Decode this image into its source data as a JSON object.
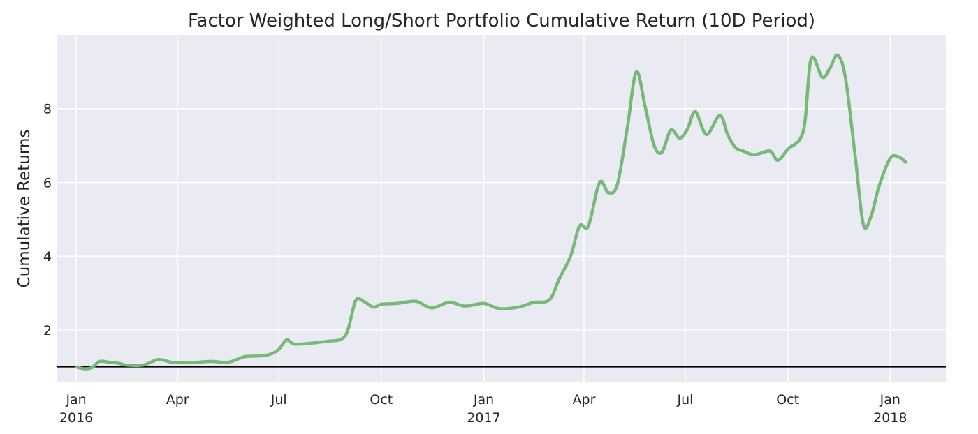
{
  "chart_data": {
    "type": "line",
    "title": "Factor Weighted Long/Short Portfolio Cumulative Return (10D Period)",
    "xlabel": "",
    "ylabel": "Cumulative Returns",
    "x_range": [
      "2015-12-15",
      "2018-02-20"
    ],
    "ylim": [
      0.6,
      10.0
    ],
    "y_ticks": [
      2,
      4,
      6,
      8
    ],
    "grid": true,
    "legend": "none",
    "background_color": "#eaeaf2",
    "line_color": "#78b878",
    "baseline": {
      "y": 1.0,
      "color": "#000000"
    },
    "x_ticks": [
      {
        "date": "2016-01-01",
        "label": "Jan",
        "year": "2016"
      },
      {
        "date": "2016-04-01",
        "label": "Apr",
        "year": ""
      },
      {
        "date": "2016-07-01",
        "label": "Jul",
        "year": ""
      },
      {
        "date": "2016-10-01",
        "label": "Oct",
        "year": ""
      },
      {
        "date": "2017-01-01",
        "label": "Jan",
        "year": "2017"
      },
      {
        "date": "2017-04-01",
        "label": "Apr",
        "year": ""
      },
      {
        "date": "2017-07-01",
        "label": "Jul",
        "year": ""
      },
      {
        "date": "2017-10-01",
        "label": "Oct",
        "year": ""
      },
      {
        "date": "2018-01-01",
        "label": "Jan",
        "year": "2018"
      }
    ],
    "series": [
      {
        "x": [
          "2016-01-01",
          "2016-01-08",
          "2016-01-15",
          "2016-01-22",
          "2016-02-01",
          "2016-02-08",
          "2016-02-15",
          "2016-03-01",
          "2016-03-15",
          "2016-03-28",
          "2016-04-15",
          "2016-05-01",
          "2016-05-15",
          "2016-05-24",
          "2016-06-01",
          "2016-06-15",
          "2016-06-24",
          "2016-07-01",
          "2016-07-08",
          "2016-07-15",
          "2016-08-01",
          "2016-08-15",
          "2016-08-26",
          "2016-09-01",
          "2016-09-08",
          "2016-09-15",
          "2016-09-24",
          "2016-10-01",
          "2016-10-15",
          "2016-11-01",
          "2016-11-15",
          "2016-12-01",
          "2016-12-15",
          "2017-01-01",
          "2017-01-15",
          "2017-02-01",
          "2017-02-15",
          "2017-03-01",
          "2017-03-10",
          "2017-03-20",
          "2017-03-28",
          "2017-04-05",
          "2017-04-15",
          "2017-04-23",
          "2017-05-01",
          "2017-05-10",
          "2017-05-18",
          "2017-05-26",
          "2017-06-03",
          "2017-06-10",
          "2017-06-18",
          "2017-06-26",
          "2017-07-03",
          "2017-07-10",
          "2017-07-20",
          "2017-08-01",
          "2017-08-08",
          "2017-08-15",
          "2017-08-22",
          "2017-09-01",
          "2017-09-15",
          "2017-09-22",
          "2017-10-01",
          "2017-10-15",
          "2017-10-22",
          "2017-11-01",
          "2017-11-08",
          "2017-11-15",
          "2017-11-22",
          "2017-12-01",
          "2017-12-08",
          "2017-12-15",
          "2017-12-22",
          "2018-01-01",
          "2018-01-08",
          "2018-01-15"
        ],
        "y": [
          1.0,
          0.95,
          0.98,
          1.15,
          1.12,
          1.1,
          1.05,
          1.05,
          1.2,
          1.12,
          1.12,
          1.15,
          1.12,
          1.2,
          1.28,
          1.3,
          1.35,
          1.48,
          1.73,
          1.62,
          1.65,
          1.7,
          1.75,
          2.0,
          2.8,
          2.78,
          2.62,
          2.7,
          2.72,
          2.78,
          2.6,
          2.75,
          2.65,
          2.72,
          2.58,
          2.62,
          2.75,
          2.82,
          3.4,
          4.0,
          4.82,
          4.82,
          6.0,
          5.72,
          5.95,
          7.5,
          9.0,
          8.05,
          7.0,
          6.82,
          7.42,
          7.2,
          7.45,
          7.92,
          7.3,
          7.82,
          7.3,
          6.95,
          6.85,
          6.75,
          6.85,
          6.6,
          6.9,
          7.4,
          9.35,
          8.85,
          9.1,
          9.45,
          8.8,
          6.6,
          4.85,
          5.1,
          5.9,
          6.65,
          6.7,
          6.55
        ]
      }
    ]
  }
}
